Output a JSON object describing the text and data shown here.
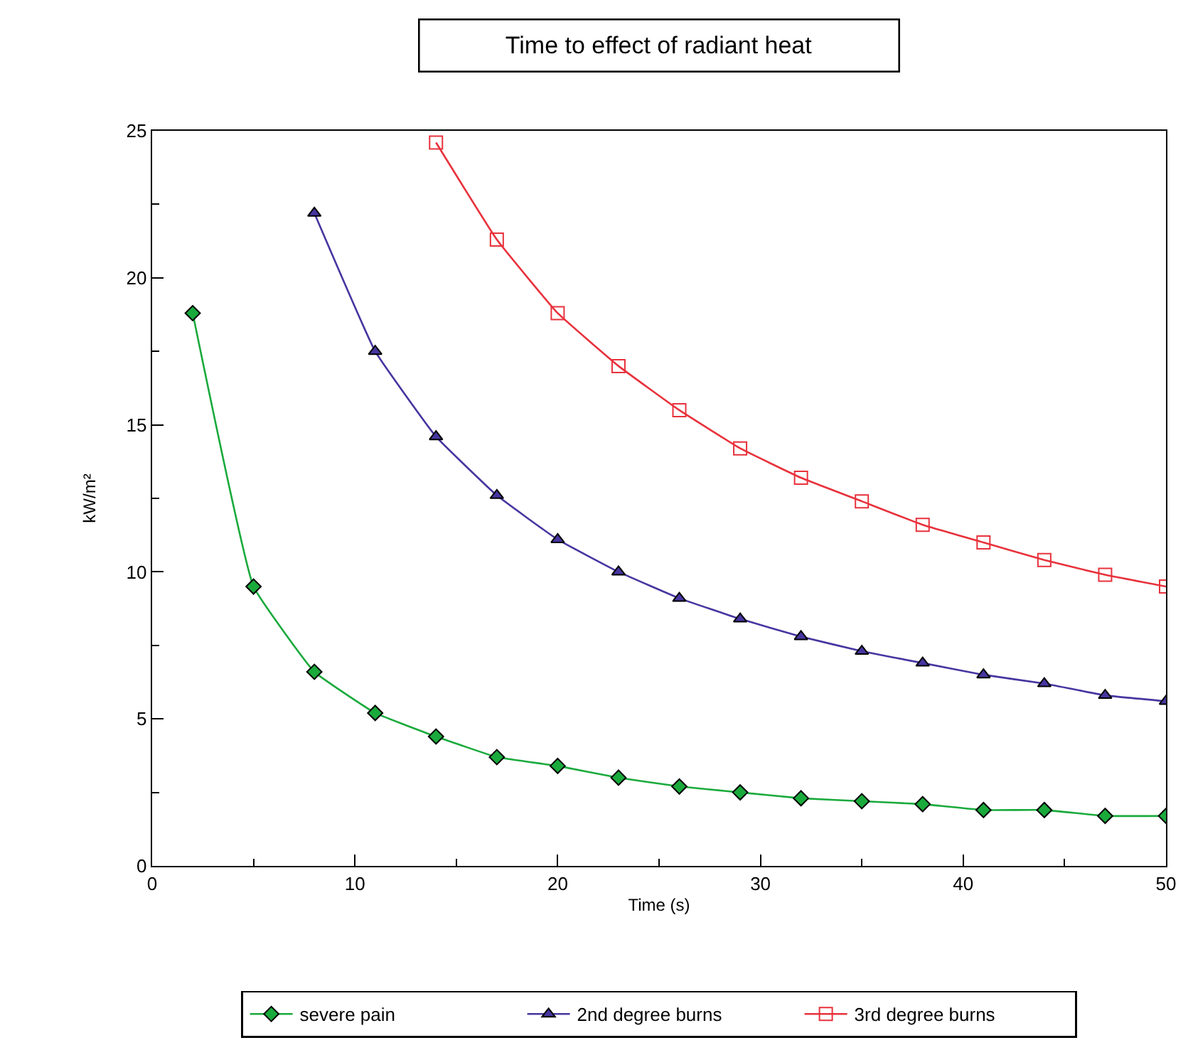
{
  "chart_data": {
    "type": "line",
    "title": "Time to effect of radiant heat",
    "xlabel": "Time (s)",
    "ylabel": "kW/m²",
    "x": [
      2,
      5,
      8,
      11,
      14,
      17,
      20,
      23,
      26,
      29,
      32,
      35,
      38,
      41,
      44,
      47,
      50
    ],
    "series": [
      {
        "name": "severe pain",
        "color": "#1aaa3c",
        "marker": "diamond",
        "values": [
          18.8,
          9.5,
          6.6,
          5.2,
          4.4,
          3.7,
          3.4,
          3.0,
          2.7,
          2.5,
          2.3,
          2.2,
          2.1,
          1.9,
          1.9,
          1.7,
          1.7
        ]
      },
      {
        "name": "2nd degree burns",
        "color": "#4636a0",
        "marker": "triangle",
        "values": [
          null,
          null,
          22.2,
          17.5,
          14.6,
          12.6,
          11.1,
          10.0,
          9.1,
          8.4,
          7.8,
          7.3,
          6.9,
          6.5,
          6.2,
          5.8,
          5.6
        ]
      },
      {
        "name": "3rd degree burns",
        "color": "#e8323c",
        "marker": "square",
        "values": [
          null,
          null,
          null,
          null,
          24.6,
          21.3,
          18.8,
          17.0,
          15.5,
          14.2,
          13.2,
          12.4,
          11.6,
          11.0,
          10.4,
          9.9,
          9.5
        ]
      }
    ],
    "xlim": [
      0,
      50
    ],
    "ylim": [
      0,
      25
    ],
    "xticks": [
      0,
      {
        "value": 5,
        "label": null
      },
      10,
      {
        "value": 15,
        "label": null
      },
      20,
      {
        "value": 25,
        "label": null
      },
      30,
      {
        "value": 35,
        "label": null
      },
      40,
      {
        "value": 45,
        "label": null
      },
      50
    ],
    "yticks": [
      0,
      {
        "value": 2.5,
        "label": null
      },
      5,
      {
        "value": 7.5,
        "label": null
      },
      10,
      {
        "value": 12.5,
        "label": null
      },
      15,
      {
        "value": 17.5,
        "label": null
      },
      20,
      {
        "value": 22.5,
        "label": null
      },
      25
    ],
    "grid": false,
    "legend": "bottom"
  }
}
